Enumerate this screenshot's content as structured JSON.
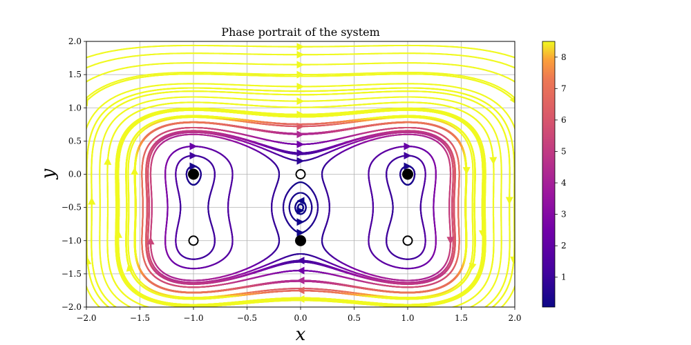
{
  "chart_data": {
    "type": "streamplot",
    "title": "Phase portrait of the system",
    "xlabel": "x",
    "ylabel": "y",
    "xlim": [
      -2.0,
      2.0
    ],
    "ylim": [
      -2.0,
      2.0
    ],
    "xticks": [
      "−2.0",
      "−1.5",
      "−1.0",
      "−0.5",
      "0.0",
      "0.5",
      "1.0",
      "1.5",
      "2.0"
    ],
    "yticks": [
      "2.0",
      "1.5",
      "1.0",
      "0.5",
      "0.0",
      "−0.5",
      "−1.0",
      "−1.5",
      "−2.0"
    ],
    "xtick_values": [
      -2.0,
      -1.5,
      -1.0,
      -0.5,
      0.0,
      0.5,
      1.0,
      1.5,
      2.0
    ],
    "ytick_values": [
      2.0,
      1.5,
      1.0,
      0.5,
      0.0,
      -0.5,
      -1.0,
      -1.5,
      -2.0
    ],
    "grid": true,
    "colormap": "plasma",
    "colorbar": {
      "range": [
        0.05,
        8.5
      ],
      "ticks": [
        1,
        2,
        3,
        4,
        5,
        6,
        7,
        8
      ],
      "tick_labels": [
        "1",
        "2",
        "3",
        "4",
        "5",
        "6",
        "7",
        "8"
      ]
    },
    "stable_points": [
      {
        "x": -1.0,
        "y": 0.0
      },
      {
        "x": 1.0,
        "y": 0.0
      },
      {
        "x": 0.0,
        "y": -1.0
      }
    ],
    "unstable_points": [
      {
        "x": 0.0,
        "y": 0.0
      },
      {
        "x": -1.0,
        "y": -1.0
      },
      {
        "x": 1.0,
        "y": -1.0
      }
    ]
  }
}
